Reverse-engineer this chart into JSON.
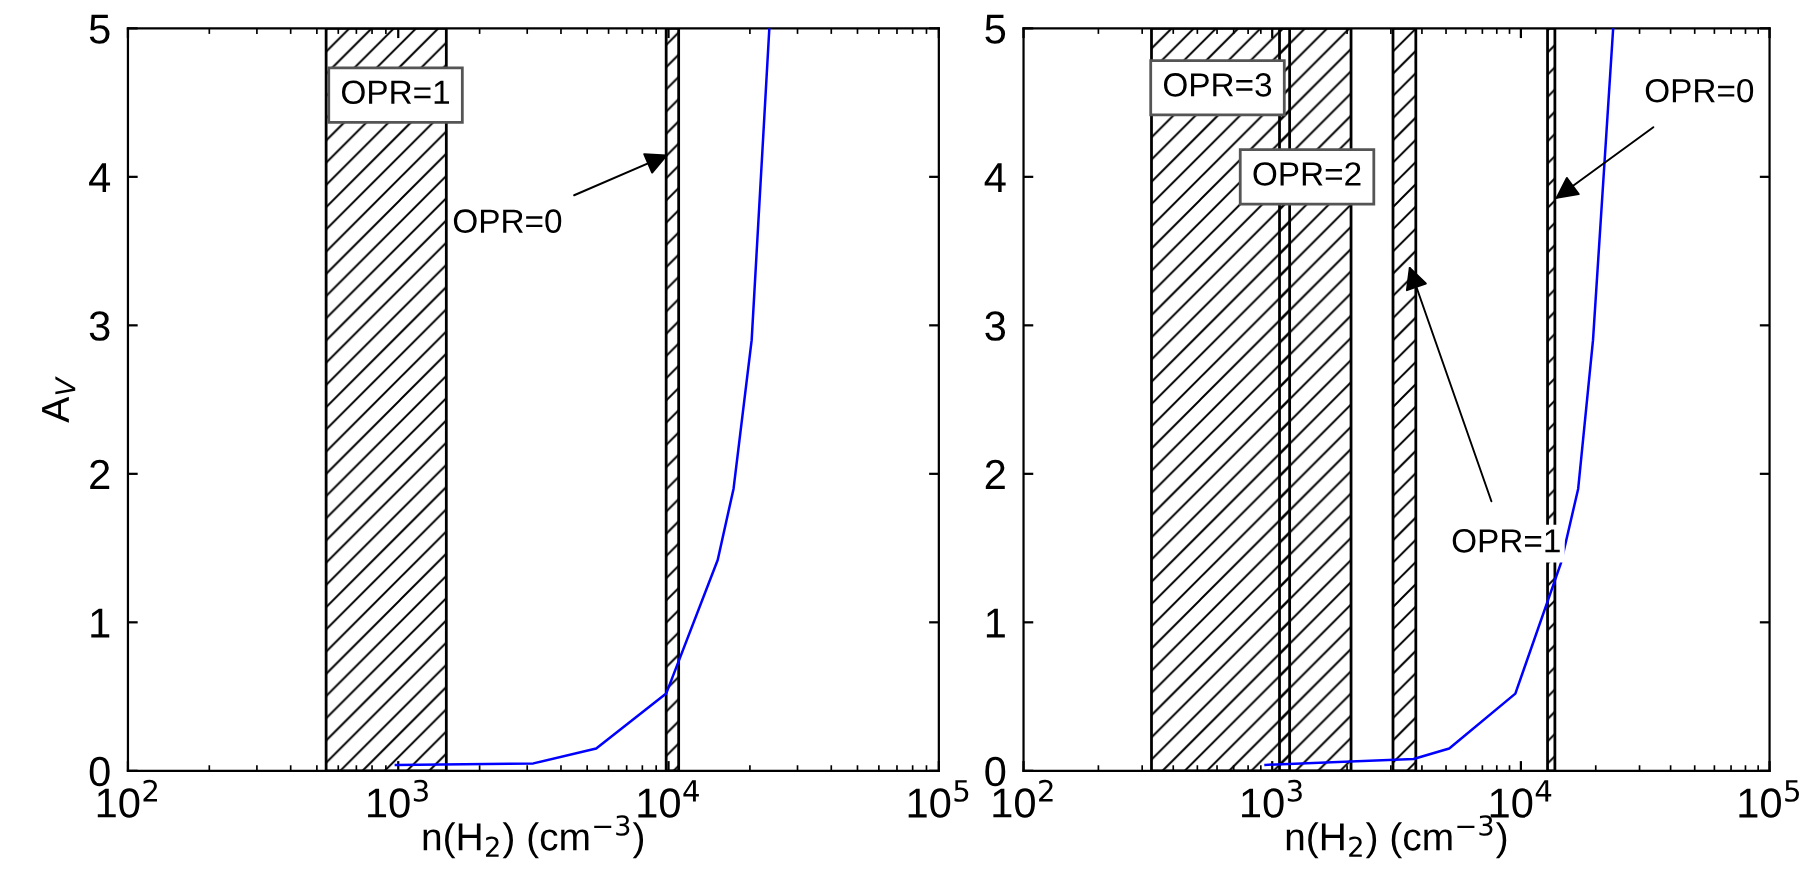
{
  "chart_data": [
    {
      "type": "line",
      "xlabel": "n(H$_{2}$) (cm$^{−3}$)",
      "ylabel": "A$_{V}$",
      "log": "x",
      "xlim": [
        100,
        100000
      ],
      "ylim": [
        0,
        5
      ],
      "xticks": [
        {
          "value": 100,
          "label": "10$^{2}$"
        },
        {
          "value": 1000,
          "label": "10$^{3}$"
        },
        {
          "value": 10000,
          "label": "10$^{4}$"
        },
        {
          "value": 100000,
          "label": "10$^{5}$"
        }
      ],
      "yticks": [
        0,
        1,
        2,
        3,
        4,
        5
      ],
      "grid": false,
      "legend": false,
      "series": [
        {
          "color": "#0000ff",
          "x": [
            980,
            3160,
            5400,
            9800,
            15200,
            17400,
            20300,
            23600
          ],
          "values": [
            0.04,
            0.05,
            0.15,
            0.52,
            1.42,
            1.9,
            2.9,
            5
          ]
        }
      ],
      "bands": [
        {
          "axis": "x",
          "from": 541,
          "to": 1506
        },
        {
          "axis": "x",
          "from": 9800,
          "to": 10900
        }
      ],
      "annotations": [
        "OPR=1",
        {
          "text": "OPR=0",
          "x": 10000,
          "y": 4.15
        }
      ]
    },
    {
      "type": "line",
      "xlabel": "n(H$_{2}$) (cm$^{−3}$)",
      "log": "x",
      "xlim": [
        100,
        100000
      ],
      "ylim": [
        0,
        5
      ],
      "xticks": [
        {
          "value": 100,
          "label": "10$^{2}$"
        },
        {
          "value": 1000,
          "label": "10$^{3}$"
        },
        {
          "value": 10000,
          "label": "10$^{4}$"
        },
        {
          "value": 100000,
          "label": "10$^{5}$"
        }
      ],
      "yticks": [
        0,
        1,
        2,
        3,
        4,
        5
      ],
      "grid": false,
      "legend": false,
      "series": [
        {
          "color": "#0000ff",
          "x": [
            940,
            3700,
            5150,
            9500,
            14500,
            17000,
            19500,
            23500
          ],
          "values": [
            0.04,
            0.08,
            0.15,
            0.52,
            1.4,
            1.9,
            2.9,
            5
          ]
        }
      ],
      "bands": [
        {
          "axis": "x",
          "from": 327,
          "to": 2075
        },
        {
          "axis": "x",
          "from": 1070,
          "to": 1175
        },
        {
          "axis": "x",
          "from": 3060,
          "to": 3780
        },
        {
          "axis": "x",
          "from": 12800,
          "to": 13700
        }
      ],
      "annotations": [
        "OPR=3",
        "OPR=2",
        {
          "text": "OPR=1",
          "x": 3550,
          "y": 3.4
        },
        {
          "text": "OPR=0",
          "x": 13700,
          "y": 3.85
        }
      ]
    }
  ]
}
